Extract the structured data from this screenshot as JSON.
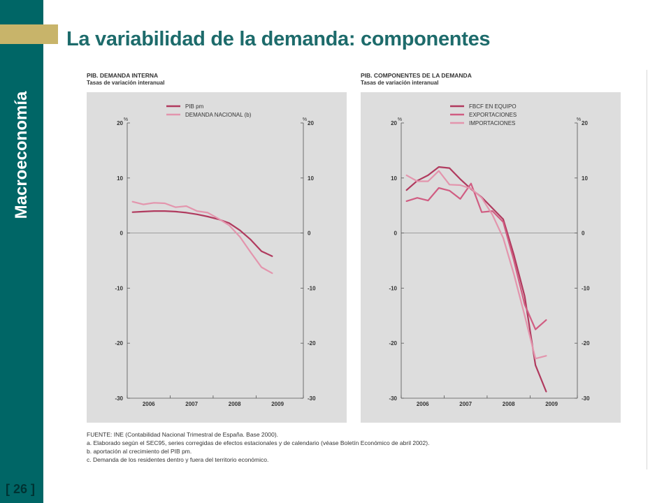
{
  "slide": {
    "sidebar_title": "Macroeconomía",
    "page_number": "[ 26 ]",
    "title": "La variabilidad de la demanda: componentes"
  },
  "colors": {
    "sidebar": "#006666",
    "accent": "#c8b46a",
    "title": "#1d6b6b",
    "panel": "#dddddd",
    "series_dark": "#b03a5e",
    "series_mid": "#d05d82",
    "series_light": "#e395ad"
  },
  "chart_data": [
    {
      "type": "line",
      "title": "PIB. DEMANDA INTERNA",
      "subtitle": "Tasas de variación interanual",
      "unit_left": "%",
      "unit_right": "%",
      "ylim": [
        -30,
        20
      ],
      "yticks": [
        20,
        10,
        0,
        -10,
        -20,
        -30
      ],
      "xlim": [
        2005.5,
        2009.6
      ],
      "year_labels": [
        "2006",
        "2007",
        "2008",
        "2009"
      ],
      "year_centers": [
        2006,
        2007,
        2008,
        2009
      ],
      "year_dividers": [
        2005.5,
        2006.5,
        2007.5,
        2008.5,
        2009.6
      ],
      "legend_position": "top-left",
      "series": [
        {
          "name": "PIB pm",
          "color": "#b03a5e",
          "x": [
            2005.625,
            2005.875,
            2006.125,
            2006.375,
            2006.625,
            2006.875,
            2007.125,
            2007.375,
            2007.625,
            2007.875,
            2008.125,
            2008.375,
            2008.625,
            2008.875
          ],
          "y": [
            3.8,
            3.9,
            4.0,
            4.0,
            3.9,
            3.7,
            3.4,
            3.0,
            2.5,
            1.8,
            0.5,
            -1.2,
            -3.3,
            -4.2
          ]
        },
        {
          "name": "DEMANDA NACIONAL (b)",
          "color": "#e395ad",
          "x": [
            2005.625,
            2005.875,
            2006.125,
            2006.375,
            2006.625,
            2006.875,
            2007.125,
            2007.375,
            2007.625,
            2007.875,
            2008.125,
            2008.375,
            2008.625,
            2008.875
          ],
          "y": [
            5.7,
            5.2,
            5.5,
            5.4,
            4.7,
            4.9,
            4.0,
            3.7,
            2.6,
            1.4,
            -0.7,
            -3.5,
            -6.2,
            -7.3
          ]
        }
      ]
    },
    {
      "type": "line",
      "title": "PIB. COMPONENTES DE LA DEMANDA",
      "subtitle": "Tasas de variación interanual",
      "unit_left": "%",
      "unit_right": "%",
      "ylim": [
        -30,
        20
      ],
      "yticks": [
        20,
        10,
        0,
        -10,
        -20,
        -30
      ],
      "xlim": [
        2005.5,
        2009.6
      ],
      "year_labels": [
        "2006",
        "2007",
        "2008",
        "2009"
      ],
      "year_centers": [
        2006,
        2007,
        2008,
        2009
      ],
      "year_dividers": [
        2005.5,
        2006.5,
        2007.5,
        2008.5,
        2009.6
      ],
      "legend_position": "top-left",
      "series": [
        {
          "name": "FBCF EN EQUIPO",
          "color": "#b03a5e",
          "x": [
            2005.625,
            2005.875,
            2006.125,
            2006.375,
            2006.625,
            2006.875,
            2007.125,
            2007.375,
            2007.625,
            2007.875,
            2008.125,
            2008.375,
            2008.625,
            2008.875
          ],
          "y": [
            7.8,
            9.5,
            10.5,
            12.0,
            11.8,
            9.8,
            8.0,
            6.5,
            4.5,
            2.5,
            -4.0,
            -11.5,
            -24.0,
            -28.8
          ]
        },
        {
          "name": "EXPORTACIONES",
          "color": "#d05d82",
          "x": [
            2005.625,
            2005.875,
            2006.125,
            2006.375,
            2006.625,
            2006.875,
            2007.125,
            2007.375,
            2007.625,
            2007.875,
            2008.125,
            2008.375,
            2008.625,
            2008.875
          ],
          "y": [
            5.8,
            6.4,
            5.9,
            8.2,
            7.7,
            6.2,
            9.0,
            3.8,
            4.0,
            2.0,
            -5.0,
            -13.0,
            -17.5,
            -15.8
          ]
        },
        {
          "name": "IMPORTACIONES",
          "color": "#e395ad",
          "x": [
            2005.625,
            2005.875,
            2006.125,
            2006.375,
            2006.625,
            2006.875,
            2007.125,
            2007.375,
            2007.625,
            2007.875,
            2008.125,
            2008.375,
            2008.625,
            2008.875
          ],
          "y": [
            10.5,
            9.4,
            9.4,
            11.3,
            8.8,
            8.7,
            8.1,
            6.4,
            3.3,
            -0.9,
            -7.5,
            -15.0,
            -22.8,
            -22.3
          ]
        }
      ]
    }
  ],
  "notes": {
    "source": "FUENTE: INE (Contabilidad Nacional Trimestral de España. Base 2000).",
    "a": "a. Elaborado según el SEC95, series corregidas de efectos estacionales y de calendario (véase Boletín Económico de abril 2002).",
    "b": "b. aportación al crecimiento del PIB pm.",
    "c": "c. Demanda de los residentes dentro y fuera del territorio económico."
  }
}
